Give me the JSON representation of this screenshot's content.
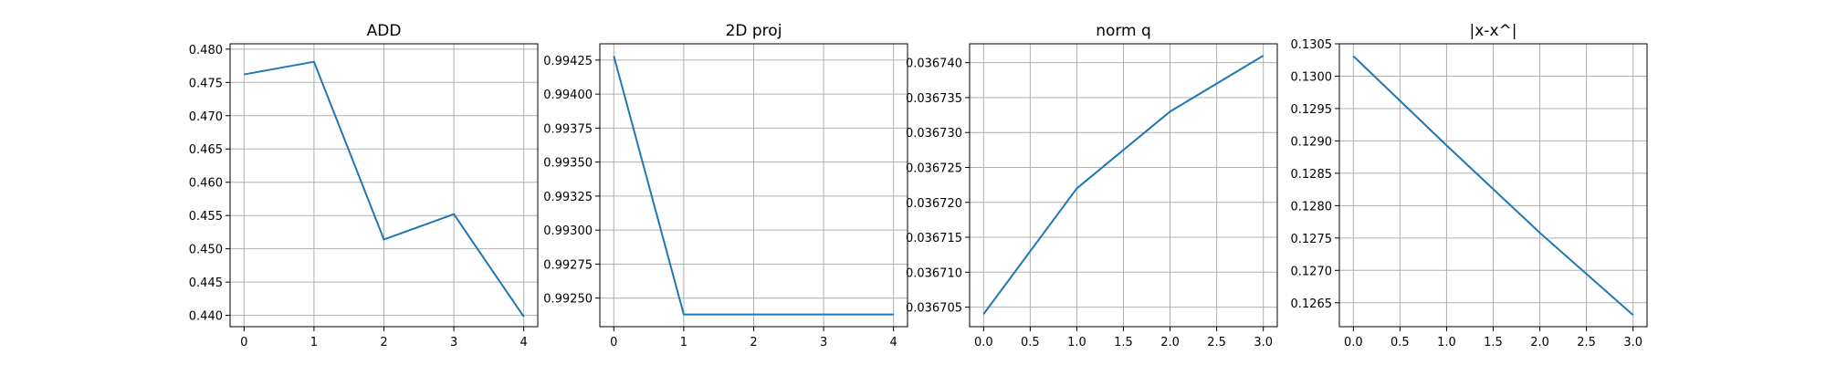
{
  "colors": {
    "series": "#1f77b4",
    "grid": "#b0b0b0",
    "axes": "#000000"
  },
  "chart_data": [
    {
      "type": "line",
      "title": "ADD",
      "grid": true,
      "x": [
        0,
        1,
        2,
        3,
        4
      ],
      "values": [
        0.4762,
        0.4781,
        0.4514,
        0.4552,
        0.4398
      ],
      "xlim": [
        -0.2,
        4.2
      ],
      "ylim": [
        0.4383,
        0.4808
      ],
      "xticks": [
        0,
        1,
        2,
        3,
        4
      ],
      "xtick_labels": [
        "0",
        "1",
        "2",
        "3",
        "4"
      ],
      "yticks": [
        0.44,
        0.445,
        0.45,
        0.455,
        0.46,
        0.465,
        0.47,
        0.475,
        0.48
      ],
      "ytick_labels": [
        "0.440",
        "0.445",
        "0.450",
        "0.455",
        "0.460",
        "0.465",
        "0.470",
        "0.475",
        "0.480"
      ]
    },
    {
      "type": "line",
      "title": "2D proj",
      "grid": true,
      "x": [
        0,
        1,
        2,
        3,
        4
      ],
      "values": [
        0.99428,
        0.99238,
        0.99238,
        0.99238,
        0.99238
      ],
      "xlim": [
        -0.2,
        4.2
      ],
      "ylim": [
        0.99229,
        0.99437
      ],
      "xticks": [
        0,
        1,
        2,
        3,
        4
      ],
      "xtick_labels": [
        "0",
        "1",
        "2",
        "3",
        "4"
      ],
      "yticks": [
        0.9925,
        0.99275,
        0.993,
        0.99325,
        0.9935,
        0.99375,
        0.994,
        0.99425
      ],
      "ytick_labels": [
        "0.99250",
        "0.99275",
        "0.99300",
        "0.99325",
        "0.99350",
        "0.99375",
        "0.99400",
        "0.99425"
      ]
    },
    {
      "type": "line",
      "title": "norm q",
      "grid": true,
      "x": [
        0,
        1,
        2,
        3
      ],
      "values": [
        0.036704,
        0.036722,
        0.036733,
        0.036741
      ],
      "xlim": [
        -0.15,
        3.15
      ],
      "ylim": [
        0.0367022,
        0.0367427
      ],
      "xticks": [
        0,
        0.5,
        1,
        1.5,
        2,
        2.5,
        3
      ],
      "xtick_labels": [
        "0.0",
        "0.5",
        "1.0",
        "1.5",
        "2.0",
        "2.5",
        "3.0"
      ],
      "yticks": [
        0.036705,
        0.03671,
        0.036715,
        0.03672,
        0.036725,
        0.03673,
        0.036735,
        0.03674
      ],
      "ytick_labels": [
        "0.036705",
        "0.036710",
        "0.036715",
        "0.036720",
        "0.036725",
        "0.036730",
        "0.036735",
        "0.036740"
      ]
    },
    {
      "type": "line",
      "title": "|x-x^|",
      "grid": true,
      "x": [
        0,
        1,
        2,
        3
      ],
      "values": [
        0.13031,
        0.12893,
        0.12758,
        0.12631
      ],
      "xlim": [
        -0.15,
        3.15
      ],
      "ylim": [
        0.12613,
        0.1305
      ],
      "xticks": [
        0,
        0.5,
        1,
        1.5,
        2,
        2.5,
        3
      ],
      "xtick_labels": [
        "0.0",
        "0.5",
        "1.0",
        "1.5",
        "2.0",
        "2.5",
        "3.0"
      ],
      "yticks": [
        0.1265,
        0.127,
        0.1275,
        0.128,
        0.1285,
        0.129,
        0.1295,
        0.13,
        0.1305
      ],
      "ytick_labels": [
        "0.1265",
        "0.1270",
        "0.1275",
        "0.1280",
        "0.1285",
        "0.1290",
        "0.1295",
        "0.1300",
        "0.1305"
      ]
    }
  ]
}
